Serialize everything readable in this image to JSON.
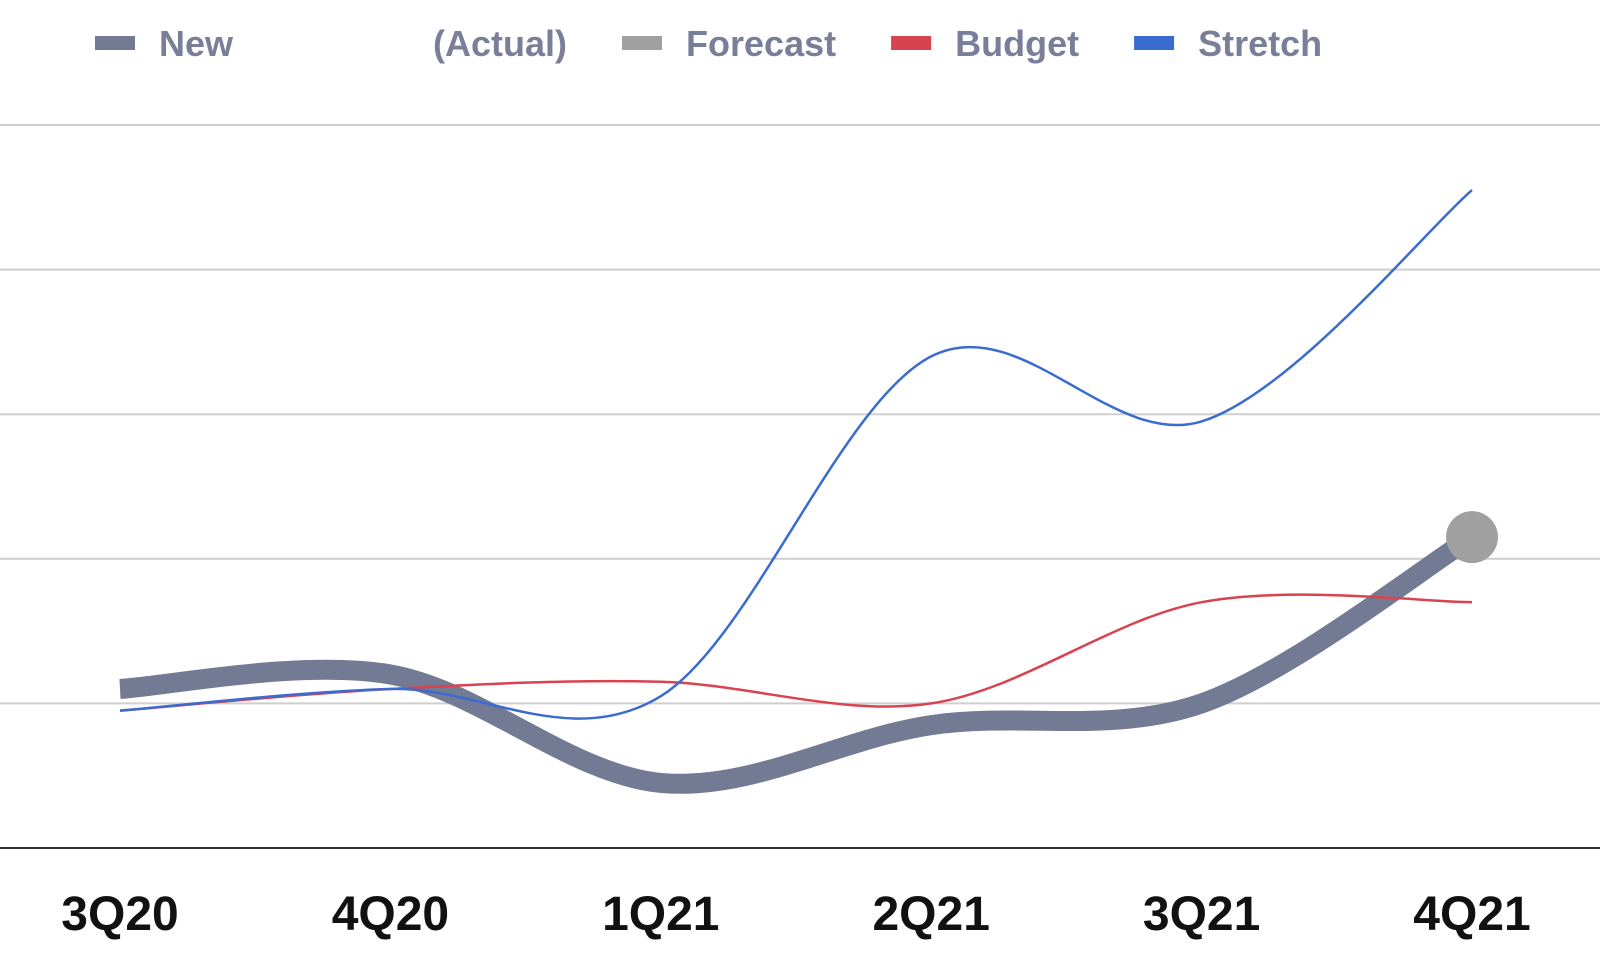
{
  "chart_data": {
    "type": "line",
    "title": "",
    "xlabel": "",
    "ylabel": "",
    "categories": [
      "3Q20",
      "4Q20",
      "1Q21",
      "2Q21",
      "3Q21",
      "4Q21"
    ],
    "ylim": [
      0,
      5
    ],
    "grid": true,
    "legend_position": "top",
    "series": [
      {
        "name": "New",
        "name_suffix": "(Actual)",
        "values": [
          1.1,
          1.2,
          0.45,
          0.85,
          1.0,
          2.15
        ],
        "color": "#737a94",
        "style": "thick"
      },
      {
        "name": "Forecast",
        "values": [
          null,
          null,
          null,
          null,
          null,
          2.15
        ],
        "color": "#a0a0a0",
        "style": "marker"
      },
      {
        "name": "Budget",
        "values": [
          0.95,
          1.1,
          1.15,
          1.0,
          1.7,
          1.7
        ],
        "color": "#d9424f",
        "style": "thin"
      },
      {
        "name": "Stretch",
        "values": [
          0.95,
          1.1,
          1.05,
          3.4,
          2.95,
          4.55
        ],
        "color": "#3a6bd1",
        "style": "thin"
      }
    ]
  }
}
